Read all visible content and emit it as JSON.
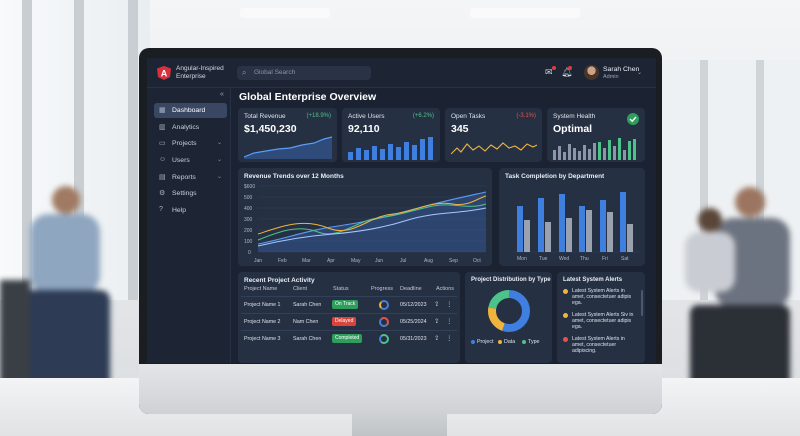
{
  "app": {
    "brand_line1": "Angular-Inspired",
    "brand_line2": "Enterprise",
    "brand_color": "#d9303e"
  },
  "search": {
    "placeholder": "Global Search"
  },
  "user": {
    "name": "Sarah Chen",
    "role": "Admin"
  },
  "sidebar": {
    "items": [
      {
        "label": "Dashboard",
        "icon": "dashboard-icon",
        "active": true
      },
      {
        "label": "Analytics",
        "icon": "bar-chart-icon"
      },
      {
        "label": "Projects",
        "icon": "folder-icon",
        "expandable": true
      },
      {
        "label": "Users",
        "icon": "users-icon",
        "expandable": true
      },
      {
        "label": "Reports",
        "icon": "file-icon",
        "expandable": true
      },
      {
        "label": "Settings",
        "icon": "gear-icon"
      },
      {
        "label": "Help",
        "icon": "help-icon"
      }
    ]
  },
  "page": {
    "title": "Global Enterprise Overview"
  },
  "kpis": [
    {
      "title": "Total Revenue",
      "delta": "(+18.9%)",
      "value": "$1,450,230",
      "delta_color": "#4cc38a"
    },
    {
      "title": "Active Users",
      "delta": "(+6.2%)",
      "value": "92,110",
      "delta_color": "#4cc38a"
    },
    {
      "title": "Open Tasks",
      "delta": "(-3.1%)",
      "value": "345",
      "delta_color": "#e5534b"
    },
    {
      "title": "System Health",
      "delta": "",
      "value": "Optimal",
      "delta_color": "#4cc38a"
    }
  ],
  "revenue_chart": {
    "title": "Revenue Trends over 12 Months",
    "y_ticks": [
      "$600",
      "500",
      "400",
      "300",
      "200",
      "100",
      "0"
    ],
    "x_ticks": [
      "Jan",
      "Feb",
      "Mar",
      "Apr",
      "May",
      "Jun",
      "Jul",
      "Aug",
      "Sep",
      "Oct"
    ]
  },
  "task_chart": {
    "title": "Task Completion by Department",
    "x_ticks": [
      "Mon",
      "Tue",
      "Wed",
      "Thu",
      "Fri",
      "Sat"
    ]
  },
  "activity": {
    "title": "Recent Project Activity",
    "columns": [
      "Project Name",
      "Client",
      "Status",
      "Progress",
      "Deadline",
      "Actions"
    ],
    "rows": [
      {
        "name": "Project Name 1",
        "client": "Sarah Chen",
        "status": "On Track",
        "status_color": "#2f9e5c",
        "deadline": "05/12/2023"
      },
      {
        "name": "Project Name 2",
        "client": "Nam Chen",
        "status": "Delayed",
        "status_color": "#d9433a",
        "deadline": "05/25/2024"
      },
      {
        "name": "Project Name 3",
        "client": "Sarah Chen",
        "status": "Completed",
        "status_color": "#2f9e5c",
        "deadline": "05/31/2023"
      }
    ]
  },
  "distribution": {
    "title": "Project Distribution by Type",
    "legend": [
      "Project",
      "Data",
      "Type"
    ],
    "colors": [
      "#3f7fe0",
      "#f0b43c",
      "#4cc38a"
    ]
  },
  "alerts": {
    "title": "Latest System Alerts",
    "items": [
      {
        "text": "Latest System Alerts in amet, consectetuer adipis ega.",
        "color": "#f0b43c"
      },
      {
        "text": "Latest System Alerts Siv in amet, consectetuer adipis ega.",
        "color": "#f0b43c"
      },
      {
        "text": "Latest System Alerts in amet, consectetuer adipiscing.",
        "color": "#e5534b"
      }
    ]
  }
}
